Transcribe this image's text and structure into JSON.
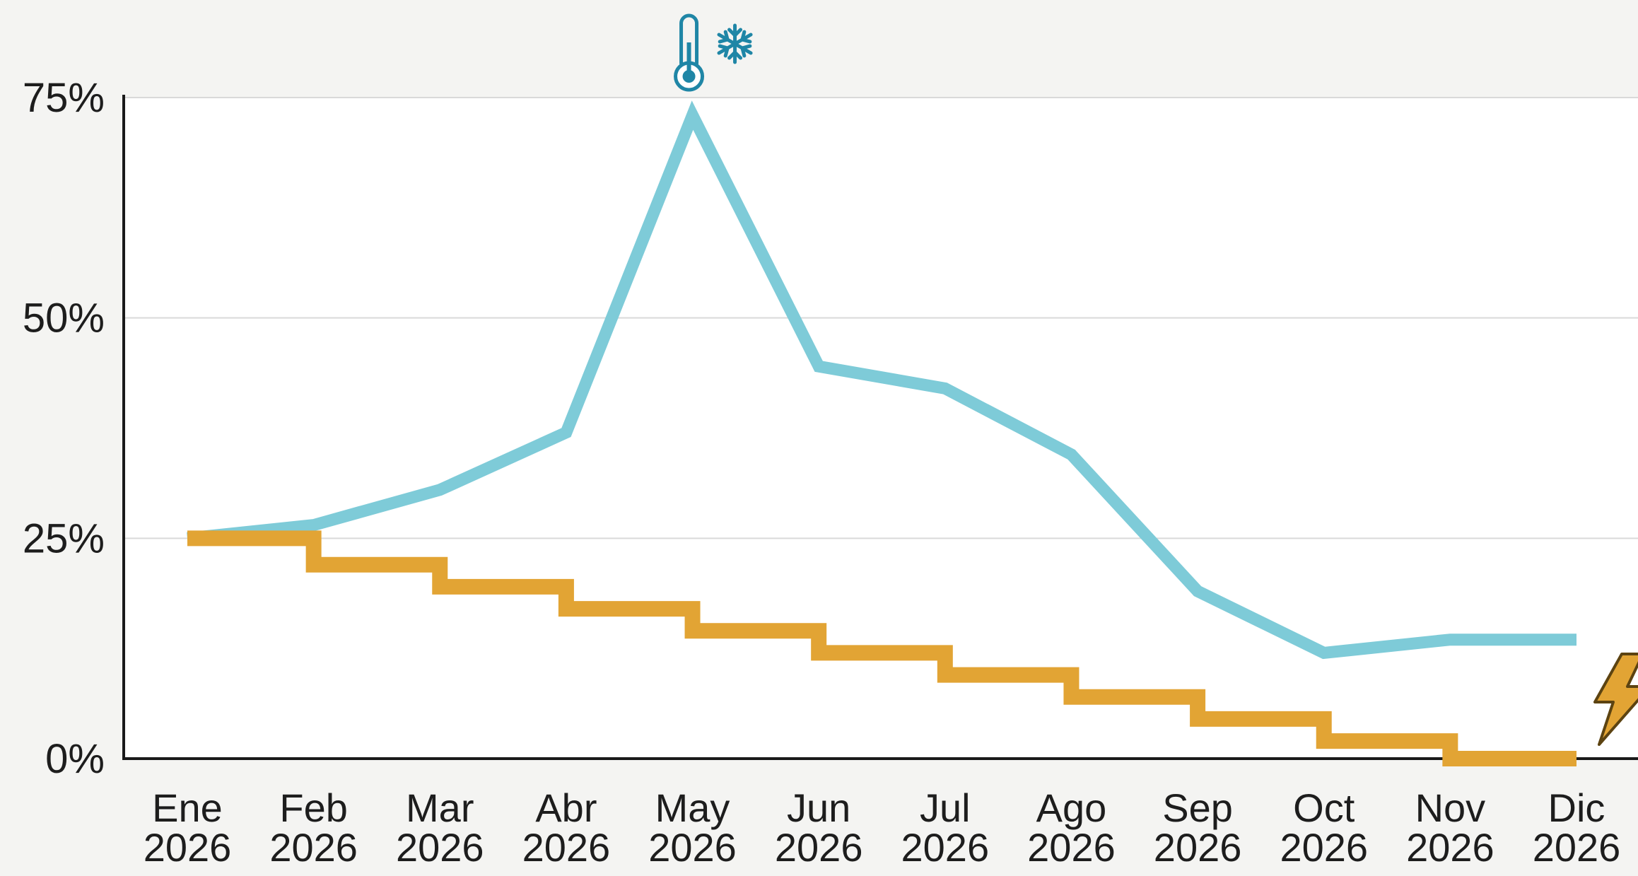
{
  "chart_data": {
    "type": "line",
    "categories": [
      [
        "Ene",
        "2026"
      ],
      [
        "Feb",
        "2026"
      ],
      [
        "Mar",
        "2026"
      ],
      [
        "Abr",
        "2026"
      ],
      [
        "May",
        "2026"
      ],
      [
        "Jun",
        "2026"
      ],
      [
        "Jul",
        "2026"
      ],
      [
        "Ago",
        "2026"
      ],
      [
        "Sep",
        "2026"
      ],
      [
        "Oct",
        "2026"
      ],
      [
        "Nov",
        "2026"
      ],
      [
        "Dic",
        "2026"
      ]
    ],
    "y_ticks": [
      {
        "value": 0,
        "label": "0%"
      },
      {
        "value": 25,
        "label": "25%"
      },
      {
        "value": 50,
        "label": "50%"
      },
      {
        "value": 75,
        "label": "75%"
      }
    ],
    "ylim": [
      0,
      75
    ],
    "grid": true,
    "series": [
      {
        "color": "#7ecbd8",
        "step": false,
        "values": [
          25,
          26.5,
          30.5,
          37,
          73,
          44.5,
          42,
          34.5,
          19,
          12,
          13.5,
          13.5
        ]
      },
      {
        "color": "#e2a434",
        "step": true,
        "values": [
          25,
          22,
          19.5,
          17,
          14.5,
          12,
          9.5,
          7,
          4.5,
          2,
          0,
          0
        ]
      }
    ],
    "annotations": [
      {
        "icon": "thermometer-snowflake-icon",
        "category_index": 4,
        "color": "#1f86a6"
      },
      {
        "icon": "lightning-bolt-icon",
        "category_index": 11,
        "color": "#e2a434"
      }
    ]
  }
}
